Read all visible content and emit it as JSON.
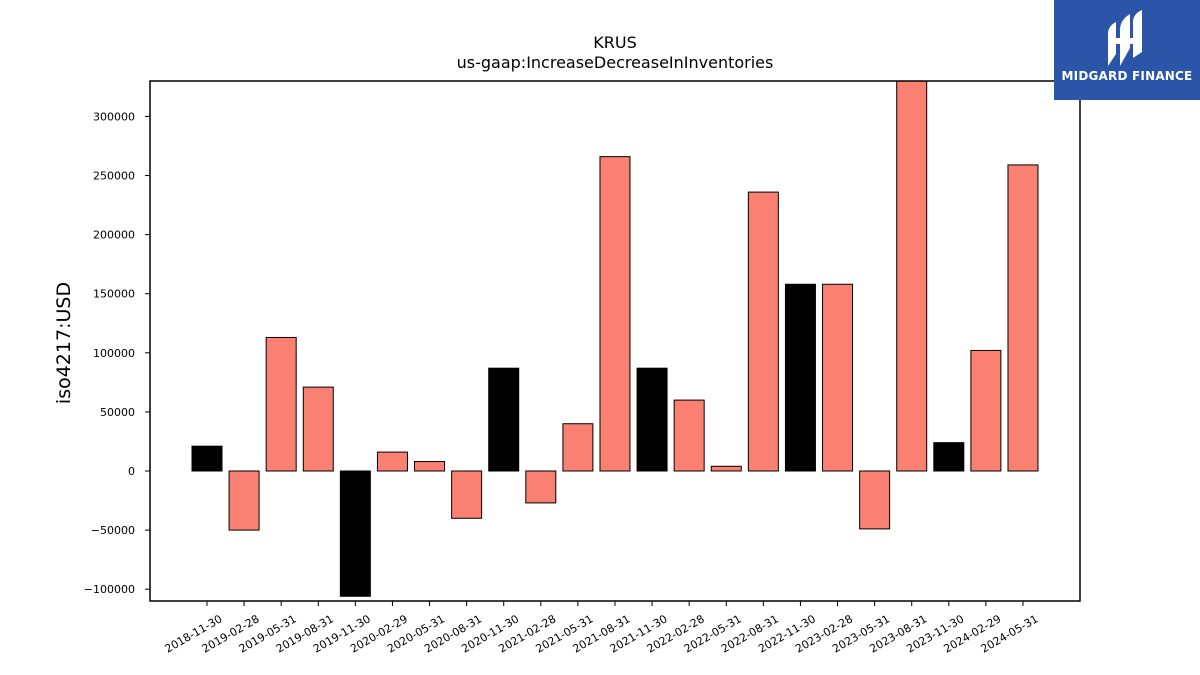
{
  "chart_data": {
    "type": "bar",
    "title": "KRUS",
    "subtitle": "us-gaap:IncreaseDecreaseInInventories",
    "xlabel": "",
    "ylabel": "iso4217:USD",
    "ylim": [
      -110000,
      330000
    ],
    "yticks": [
      -100000,
      -50000,
      0,
      50000,
      100000,
      150000,
      200000,
      250000,
      300000
    ],
    "grid": false,
    "categories": [
      "2018-11-30",
      "2019-02-28",
      "2019-05-31",
      "2019-08-31",
      "2019-11-30",
      "2020-02-29",
      "2020-05-31",
      "2020-08-31",
      "2020-11-30",
      "2021-02-28",
      "2021-05-31",
      "2021-08-31",
      "2021-11-30",
      "2022-02-28",
      "2022-05-31",
      "2022-08-31",
      "2022-11-30",
      "2023-02-28",
      "2023-05-31",
      "2023-08-31",
      "2023-11-30",
      "2024-02-29",
      "2024-05-31"
    ],
    "values": [
      21000,
      -50000,
      113000,
      71000,
      -106000,
      16000,
      8000,
      -40000,
      87000,
      -27000,
      40000,
      266000,
      87000,
      60000,
      4000,
      236000,
      158000,
      158000,
      -49000,
      330000,
      24000,
      102000,
      259000
    ],
    "bar_colors": [
      "#000000",
      "#fa8072",
      "#fa8072",
      "#fa8072",
      "#000000",
      "#fa8072",
      "#fa8072",
      "#fa8072",
      "#000000",
      "#fa8072",
      "#fa8072",
      "#fa8072",
      "#000000",
      "#fa8072",
      "#fa8072",
      "#fa8072",
      "#000000",
      "#fa8072",
      "#fa8072",
      "#fa8072",
      "#000000",
      "#fa8072",
      "#fa8072"
    ]
  },
  "logo": {
    "text": "MIDGARD FINANCE",
    "background": "#2a55a8"
  }
}
